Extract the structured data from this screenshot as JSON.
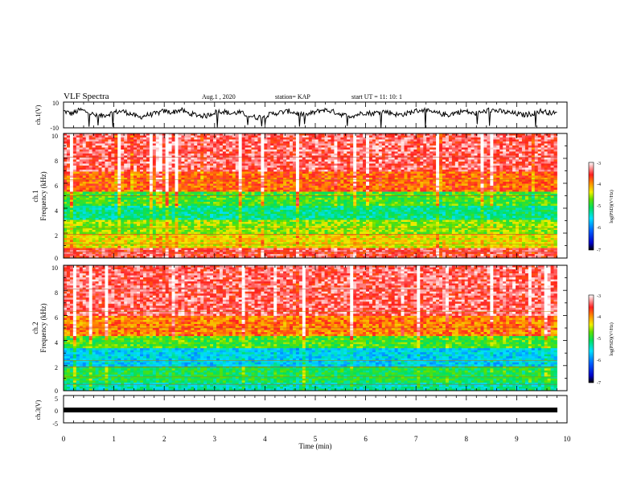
{
  "header": {
    "title": "VLF Spectra",
    "date": "Aug.1 , 2020",
    "station": "station= KAP",
    "start": "start UT = 11: 10: 1"
  },
  "chart_data": [
    {
      "type": "line",
      "name": "ch1-voltage",
      "ylabel": "ch.1(V)",
      "ylim": [
        -10,
        10
      ],
      "y_ticks": [
        "10",
        "-10"
      ],
      "x_range": [
        0,
        9.8
      ],
      "x_unit": "min",
      "values_sample": [
        3,
        1,
        4,
        2,
        -1,
        0,
        2,
        3,
        1,
        -2,
        0,
        1,
        3,
        2,
        4,
        1,
        0,
        -1,
        2,
        3,
        1,
        2,
        0,
        -2,
        -1,
        1,
        2,
        3,
        1,
        0,
        2,
        4,
        3,
        1,
        -1,
        0,
        2,
        1,
        3,
        2,
        0,
        1,
        3,
        4,
        2,
        1,
        0,
        2,
        3,
        1,
        2,
        4,
        3,
        2,
        1,
        0,
        1,
        3,
        2,
        1
      ]
    },
    {
      "type": "heatmap",
      "name": "ch1-spectrogram",
      "ylabel": "ch.1\nFrequency (kHz)",
      "ylim": [
        0,
        10
      ],
      "y_ticks": [
        "0",
        "2",
        "4",
        "6",
        "8",
        "10"
      ],
      "x_range": [
        0,
        9.8
      ],
      "bands_khz": [
        {
          "from": 0,
          "to": 0.8,
          "level": -3.5
        },
        {
          "from": 0.8,
          "to": 2,
          "level": -4.3
        },
        {
          "from": 2,
          "to": 3,
          "level": -4.6
        },
        {
          "from": 3,
          "to": 4.2,
          "level": -5.2
        },
        {
          "from": 4.2,
          "to": 5.4,
          "level": -4.8
        },
        {
          "from": 5.4,
          "to": 7,
          "level": -3.8
        },
        {
          "from": 7,
          "to": 10,
          "level": -3.4
        }
      ]
    },
    {
      "type": "heatmap",
      "name": "ch2-spectrogram",
      "ylabel": "ch.2\nFrequency (kHz)",
      "ylim": [
        0,
        10
      ],
      "y_ticks": [
        "0",
        "2",
        "4",
        "6",
        "8",
        "10"
      ],
      "x_range": [
        0,
        9.8
      ],
      "bands_khz": [
        {
          "from": 0,
          "to": 0.6,
          "level": -5.3
        },
        {
          "from": 0.6,
          "to": 2,
          "level": -5.0
        },
        {
          "from": 2,
          "to": 3.4,
          "level": -5.6
        },
        {
          "from": 3.4,
          "to": 4.4,
          "level": -4.8
        },
        {
          "from": 4.4,
          "to": 6,
          "level": -3.9
        },
        {
          "from": 6,
          "to": 10,
          "level": -3.4
        }
      ]
    },
    {
      "type": "line",
      "name": "ch3-voltage",
      "ylabel": "ch.3(V)",
      "ylim": [
        -5,
        5
      ],
      "y_ticks": [
        "5",
        "0",
        "-5"
      ],
      "x_range": [
        0,
        9.8
      ],
      "level": 0
    }
  ],
  "x_axis": {
    "label": "Time (min)",
    "range": [
      0,
      10
    ],
    "ticks": [
      "0",
      "1",
      "2",
      "3",
      "4",
      "5",
      "6",
      "7",
      "8",
      "9",
      "10"
    ]
  },
  "colorbar": {
    "label": "log(PSD)(V²/Hz)",
    "range": [
      -7,
      -3
    ],
    "ticks": [
      "-3",
      "-4",
      "-5",
      "-6",
      "-7"
    ]
  }
}
